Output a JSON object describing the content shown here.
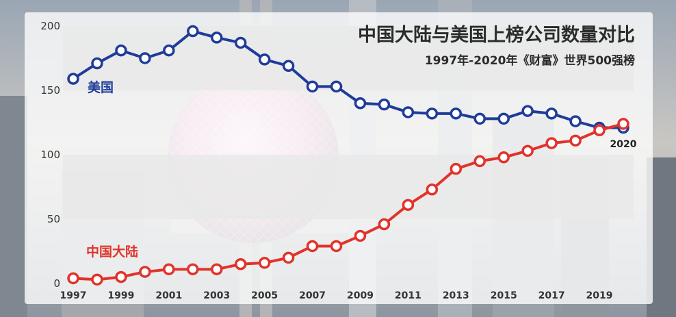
{
  "chart_data": {
    "type": "line",
    "title": "中国大陆与美国上榜公司数量对比",
    "subtitle": "1997年-2020年《财富》世界500强榜",
    "xlabel": "",
    "ylabel": "",
    "ylim": [
      0,
      200
    ],
    "yticks": [
      0,
      50,
      100,
      150,
      200
    ],
    "x": [
      1997,
      1998,
      1999,
      2000,
      2001,
      2002,
      2003,
      2004,
      2005,
      2006,
      2007,
      2008,
      2009,
      2010,
      2011,
      2012,
      2013,
      2014,
      2015,
      2016,
      2017,
      2018,
      2019,
      2020
    ],
    "xtick_labels": [
      "1997",
      "1999",
      "2001",
      "2003",
      "2005",
      "2007",
      "2009",
      "2011",
      "2013",
      "2015",
      "2017",
      "2019"
    ],
    "grid": false,
    "series": [
      {
        "name": "美国",
        "color": "#1f3c9a",
        "values": [
          159,
          171,
          181,
          175,
          181,
          196,
          191,
          187,
          174,
          169,
          153,
          153,
          140,
          139,
          133,
          132,
          132,
          128,
          128,
          134,
          132,
          126,
          121,
          121
        ]
      },
      {
        "name": "中国大陆",
        "color": "#e1332b",
        "values": [
          4,
          3,
          5,
          9,
          11,
          11,
          11,
          15,
          16,
          20,
          29,
          29,
          37,
          46,
          61,
          73,
          89,
          95,
          98,
          103,
          109,
          111,
          119,
          124
        ]
      }
    ],
    "annotations": [
      {
        "text": "2020"
      }
    ]
  }
}
